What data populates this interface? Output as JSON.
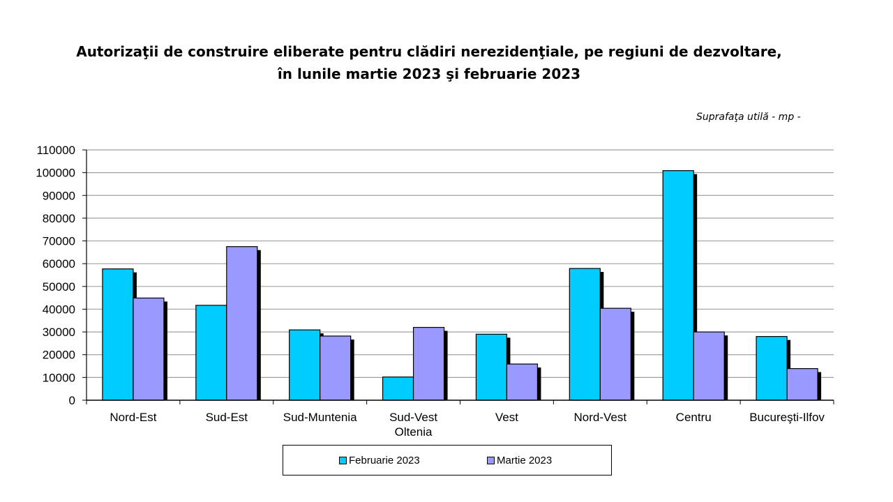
{
  "title_line1": "Autorizaţii de construire eliberate pentru clădiri nerezidenţiale, pe regiuni de dezvoltare,",
  "title_line2": "în lunile martie 2023 şi februarie 2023",
  "unit_label": "Suprafaţa utilă - mp -",
  "colors": {
    "Februarie 2023": "#00ccff",
    "Martie 2023": "#9999ff",
    "shadow": "#000000",
    "grid": "#a0a0a0"
  },
  "chart_data": {
    "type": "bar",
    "categories": [
      [
        "Nord-Est"
      ],
      [
        "Sud-Est"
      ],
      [
        "Sud-Muntenia"
      ],
      [
        "Sud-Vest",
        "Oltenia"
      ],
      [
        "Vest"
      ],
      [
        "Nord-Vest"
      ],
      [
        "Centru"
      ],
      [
        "Bucureşti-Ilfov"
      ]
    ],
    "series": [
      {
        "name": "Februarie 2023",
        "values": [
          57700,
          41700,
          30900,
          10200,
          29000,
          57900,
          100900,
          28000
        ]
      },
      {
        "name": "Martie 2023",
        "values": [
          44900,
          67500,
          28200,
          32000,
          15900,
          40400,
          30000,
          13900
        ]
      }
    ],
    "yticks": [
      0,
      10000,
      20000,
      30000,
      40000,
      50000,
      60000,
      70000,
      80000,
      90000,
      100000,
      110000
    ],
    "ylim": [
      0,
      110000
    ],
    "grid": true,
    "legend_position": "bottom"
  }
}
